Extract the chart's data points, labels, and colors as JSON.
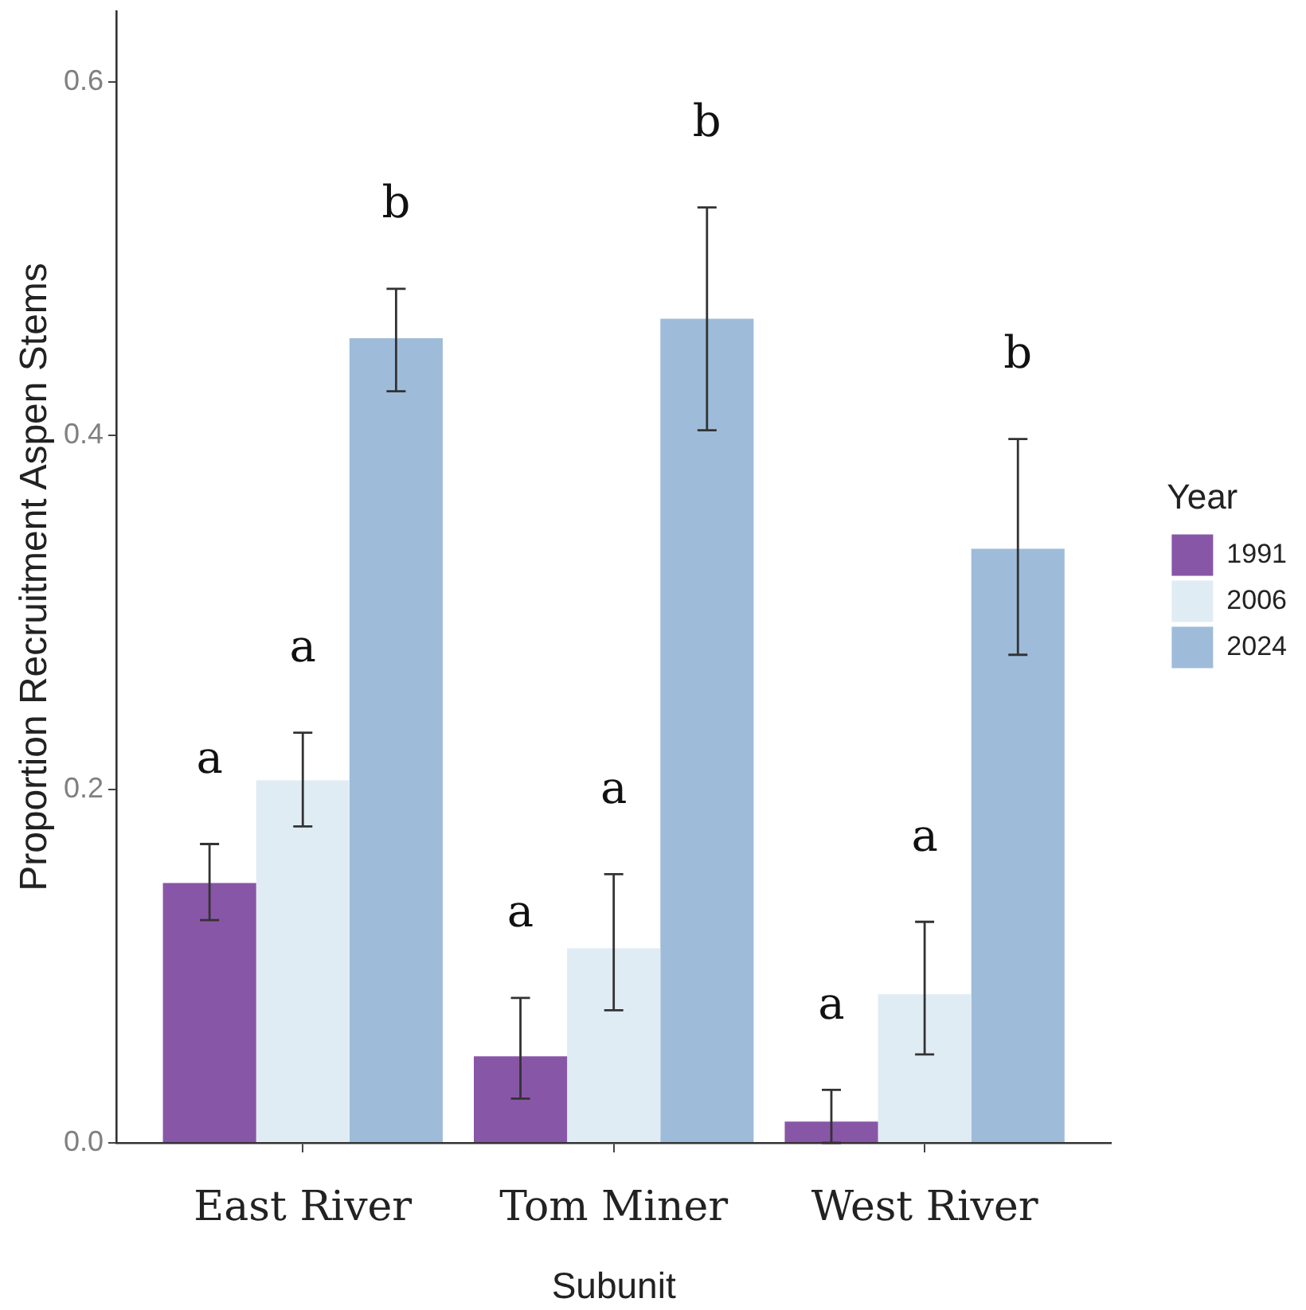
{
  "chart_data": {
    "type": "bar",
    "xlabel": "Subunit",
    "ylabel": "Proportion Recruitment Aspen Stems",
    "legend_title": "Year",
    "legend": "right",
    "categories": [
      "East River",
      "Tom Miner",
      "West River"
    ],
    "series": [
      {
        "name": "1991",
        "color": "#8856a7",
        "values": [
          0.147,
          0.049,
          0.012
        ],
        "errors": [
          [
            0.126,
            0.169
          ],
          [
            0.025,
            0.082
          ],
          [
            0.0,
            0.03
          ]
        ]
      },
      {
        "name": "2006",
        "color": "#e0ecf4",
        "values": [
          0.205,
          0.11,
          0.084
        ],
        "errors": [
          [
            0.179,
            0.232
          ],
          [
            0.075,
            0.152
          ],
          [
            0.05,
            0.125
          ]
        ]
      },
      {
        "name": "2024",
        "color": "#9ebcda",
        "values": [
          0.455,
          0.466,
          0.336
        ],
        "errors": [
          [
            0.425,
            0.483
          ],
          [
            0.403,
            0.529
          ],
          [
            0.276,
            0.398
          ]
        ]
      }
    ],
    "ylim": [
      0,
      0.64
    ],
    "yticks": [
      {
        "value": 0,
        "label": "0.0"
      },
      0.2,
      0.4,
      0.6
    ],
    "annotations": [
      "a",
      "a",
      "b",
      "a",
      "a",
      "b",
      "a",
      "a",
      "b"
    ]
  }
}
